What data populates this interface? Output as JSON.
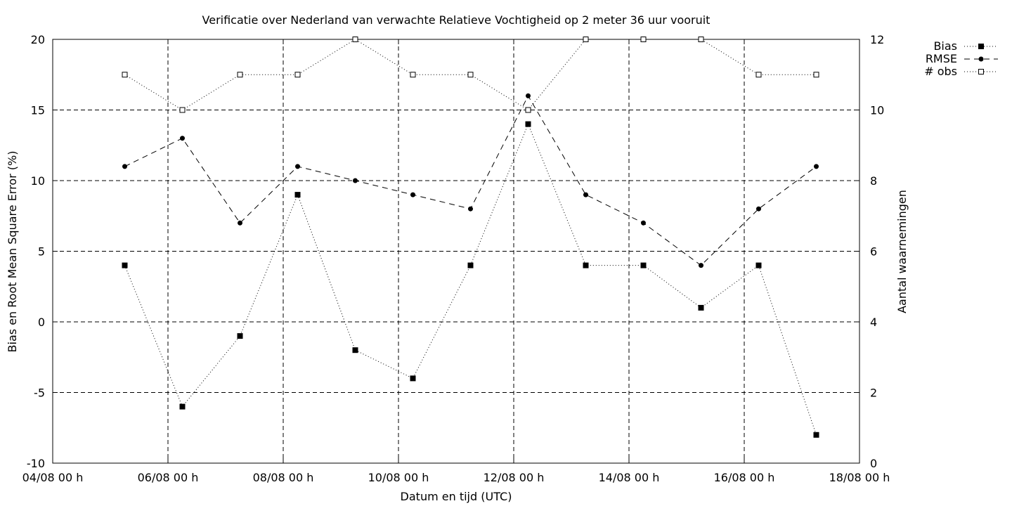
{
  "chart_data": {
    "type": "line",
    "title": "Verificatie over Nederland van verwachte Relatieve Vochtigheid op 2 meter 36 uur vooruit",
    "xlabel": "Datum en tijd (UTC)",
    "ylabel": "Bias en Root Mean Square Error (%)",
    "y2label": "Aantal waarnemingen",
    "x_ticks": [
      "04/08 00 h",
      "06/08 00 h",
      "08/08 00 h",
      "10/08 00 h",
      "12/08 00 h",
      "14/08 00 h",
      "16/08 00 h",
      "18/08 00 h"
    ],
    "xlim": [
      "2000-08-04 00:00",
      "2000-08-18 00:00"
    ],
    "ylim": [
      -10,
      20
    ],
    "y_ticks": [
      -10,
      -5,
      0,
      5,
      10,
      15,
      20
    ],
    "y2lim": [
      0,
      12
    ],
    "y2_ticks": [
      0,
      2,
      4,
      6,
      8,
      10,
      12
    ],
    "grid": true,
    "legend": "top-right, outside",
    "x": [
      "2000-08-05 06:00",
      "2000-08-06 06:00",
      "2000-08-07 06:00",
      "2000-08-08 06:00",
      "2000-08-09 06:00",
      "2000-08-10 06:00",
      "2000-08-11 06:00",
      "2000-08-12 06:00",
      "2000-08-13 06:00",
      "2000-08-14 06:00",
      "2000-08-15 06:00",
      "2000-08-16 06:00",
      "2000-08-17 06:00"
    ],
    "series": [
      {
        "name": "Bias",
        "axis": "y",
        "marker": "filled-square",
        "line": "dotted",
        "values": [
          4,
          -6,
          -1,
          9,
          -2,
          -4,
          4,
          14,
          4,
          4,
          1,
          4,
          -8
        ]
      },
      {
        "name": "RMSE",
        "axis": "y",
        "marker": "filled-circle",
        "line": "dashed",
        "values": [
          11,
          13,
          7,
          11,
          10,
          9,
          8,
          16,
          9,
          7,
          4,
          8,
          11
        ]
      },
      {
        "name": "# obs",
        "axis": "y2",
        "marker": "open-square",
        "line": "dotted",
        "values": [
          11,
          10,
          11,
          11,
          12,
          11,
          11,
          10,
          12,
          12,
          12,
          11,
          11
        ]
      }
    ]
  }
}
